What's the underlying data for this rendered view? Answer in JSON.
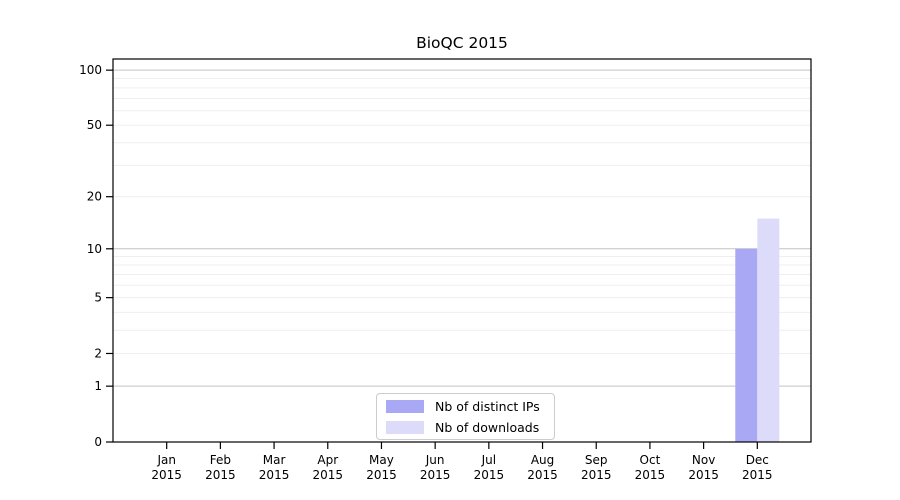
{
  "chart_data": {
    "type": "bar",
    "title": "BioQC 2015",
    "x_tick_labels": [
      {
        "month": "Jan",
        "year": "2015"
      },
      {
        "month": "Feb",
        "year": "2015"
      },
      {
        "month": "Mar",
        "year": "2015"
      },
      {
        "month": "Apr",
        "year": "2015"
      },
      {
        "month": "May",
        "year": "2015"
      },
      {
        "month": "Jun",
        "year": "2015"
      },
      {
        "month": "Jul",
        "year": "2015"
      },
      {
        "month": "Aug",
        "year": "2015"
      },
      {
        "month": "Sep",
        "year": "2015"
      },
      {
        "month": "Oct",
        "year": "2015"
      },
      {
        "month": "Nov",
        "year": "2015"
      },
      {
        "month": "Dec",
        "year": "2015"
      }
    ],
    "series": [
      {
        "name": "Nb of distinct IPs",
        "color": "#a8a8f5",
        "values": [
          0,
          0,
          0,
          0,
          0,
          0,
          0,
          0,
          0,
          0,
          0,
          10
        ]
      },
      {
        "name": "Nb of downloads",
        "color": "#dcdcfa",
        "values": [
          0,
          0,
          0,
          0,
          0,
          0,
          0,
          0,
          0,
          0,
          0,
          15
        ]
      }
    ],
    "yscale": "log1p",
    "ylim": [
      0,
      115
    ],
    "y_tick_values": [
      0,
      1,
      2,
      5,
      10,
      20,
      50,
      100
    ],
    "gridlines": {
      "major": [
        1,
        10,
        100
      ],
      "minor": [
        2,
        3,
        4,
        5,
        6,
        7,
        8,
        9,
        20,
        30,
        40,
        50,
        60,
        70,
        80,
        90
      ]
    },
    "legend_position": "bottom-center-inside",
    "colors": {
      "frame": "#000000",
      "major_grid": "#c3c3c3",
      "minor_grid": "#efefef",
      "text": "#000000",
      "background": "#ffffff"
    }
  }
}
